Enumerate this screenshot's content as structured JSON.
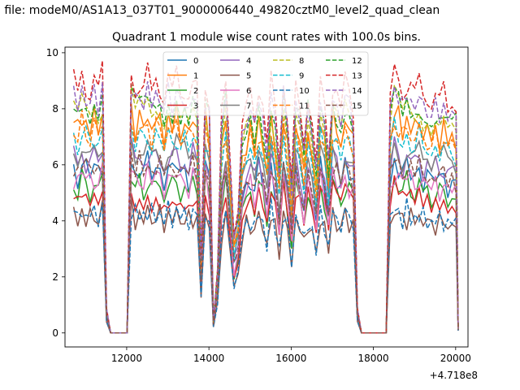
{
  "figure": {
    "suptitle": "n file: modeM0/AS1A13_037T01_9000006440_49820cztM0_level2_quad_clean",
    "title": "Quadrant 1 module wise count rates with 100.0s bins.",
    "x_offset_label": "+4.718e8"
  },
  "chart_data": {
    "type": "line",
    "title": "Quadrant 1 module wise count rates with 100.0s bins.",
    "xlabel": "",
    "ylabel": "",
    "xlim": [
      10500,
      20300
    ],
    "ylim": [
      -0.5,
      10.2
    ],
    "x_offset": 471800000,
    "x_ticks": [
      12000,
      14000,
      16000,
      18000,
      20000
    ],
    "y_ticks": [
      0,
      2,
      4,
      6,
      8,
      10
    ],
    "x_tick_labels": [
      "12000",
      "14000",
      "16000",
      "18000",
      "20000"
    ],
    "y_tick_labels": [
      "0",
      "2",
      "4",
      "6",
      "8",
      "10"
    ],
    "grid": false,
    "legend": {
      "placement": "top-center",
      "columns": 4
    },
    "x": [
      10710,
      10810,
      10910,
      11010,
      11110,
      11210,
      11310,
      11410,
      11510,
      11610,
      11710,
      11810,
      11910,
      12010,
      12110,
      12210,
      12310,
      12410,
      12510,
      12610,
      12710,
      12810,
      12910,
      13010,
      13110,
      13210,
      13310,
      13410,
      13510,
      13610,
      13710,
      13810,
      13910,
      14010,
      14110,
      14210,
      14310,
      14410,
      14510,
      14610,
      14710,
      14810,
      14910,
      15010,
      15110,
      15210,
      15310,
      15410,
      15510,
      15610,
      15710,
      15810,
      15910,
      16010,
      16110,
      16210,
      16310,
      16410,
      16510,
      16610,
      16710,
      16810,
      16910,
      17010,
      17110,
      17210,
      17310,
      17410,
      17510,
      17610,
      17710,
      17810,
      17910,
      18010,
      18110,
      18210,
      18310,
      18410,
      18510,
      18610,
      18710,
      18810,
      18910,
      19010,
      19110,
      19210,
      19310,
      19410,
      19510,
      19610,
      19710,
      19810,
      19910,
      20010,
      20060
    ],
    "series_levels": [
      {
        "name": "0",
        "color": "#1f77b4",
        "style": "solid",
        "level": 5.9
      },
      {
        "name": "1",
        "color": "#ff7f0e",
        "style": "solid",
        "level": 7.6
      },
      {
        "name": "2",
        "color": "#2ca02c",
        "style": "solid",
        "level": 5.3
      },
      {
        "name": "3",
        "color": "#d62728",
        "style": "solid",
        "level": 5.0
      },
      {
        "name": "4",
        "color": "#9467bd",
        "style": "solid",
        "level": 6.3
      },
      {
        "name": "5",
        "color": "#8c564b",
        "style": "solid",
        "level": 4.2
      },
      {
        "name": "6",
        "color": "#e377c2",
        "style": "solid",
        "level": 5.6
      },
      {
        "name": "7",
        "color": "#7f7f7f",
        "style": "solid",
        "level": 6.6
      },
      {
        "name": "8",
        "color": "#bcbd22",
        "style": "dashed",
        "level": 8.0
      },
      {
        "name": "9",
        "color": "#17becf",
        "style": "dashed",
        "level": 7.0
      },
      {
        "name": "10",
        "color": "#1f77b4",
        "style": "dashed",
        "level": 4.3
      },
      {
        "name": "11",
        "color": "#ff7f0e",
        "style": "dashed",
        "level": 7.3
      },
      {
        "name": "12",
        "color": "#2ca02c",
        "style": "dashed",
        "level": 8.3
      },
      {
        "name": "13",
        "color": "#d62728",
        "style": "dashed",
        "level": 9.0
      },
      {
        "name": "14",
        "color": "#9467bd",
        "style": "dashed",
        "level": 8.5
      },
      {
        "name": "15",
        "color": "#8c564b",
        "style": "dashed",
        "level": 6.0
      }
    ],
    "profile": [
      1.0,
      0.95,
      1.02,
      0.98,
      0.96,
      1.0,
      0.97,
      1.03,
      0.1,
      0.0,
      0.0,
      0.0,
      0.0,
      0.0,
      1.05,
      0.95,
      1.0,
      0.97,
      1.02,
      0.96,
      1.0,
      0.98,
      0.94,
      1.0,
      0.96,
      1.02,
      0.95,
      0.98,
      0.93,
      1.0,
      0.96,
      0.3,
      1.0,
      0.9,
      0.05,
      0.25,
      0.85,
      1.0,
      0.7,
      0.4,
      0.5,
      0.8,
      0.9,
      0.95,
      0.85,
      1.0,
      0.9,
      0.75,
      1.0,
      0.88,
      0.7,
      1.0,
      0.85,
      0.6,
      0.95,
      0.9,
      0.75,
      0.95,
      0.85,
      0.65,
      1.0,
      0.9,
      0.7,
      1.0,
      0.95,
      0.88,
      1.0,
      0.95,
      0.9,
      0.1,
      0.0,
      0.0,
      0.0,
      0.0,
      0.0,
      0.0,
      0.0,
      0.9,
      1.05,
      1.0,
      0.95,
      1.0,
      0.97,
      0.95,
      1.0,
      0.93,
      0.96,
      0.9,
      0.95,
      0.92,
      0.95,
      0.9,
      0.92,
      0.9,
      0.02
    ],
    "legend_entries": [
      "0",
      "1",
      "2",
      "3",
      "4",
      "5",
      "6",
      "7",
      "8",
      "9",
      "10",
      "11",
      "12",
      "13",
      "14",
      "15"
    ]
  },
  "colors": {
    "axes": "#000000",
    "background": "#ffffff",
    "legend_border": "#cccccc"
  }
}
